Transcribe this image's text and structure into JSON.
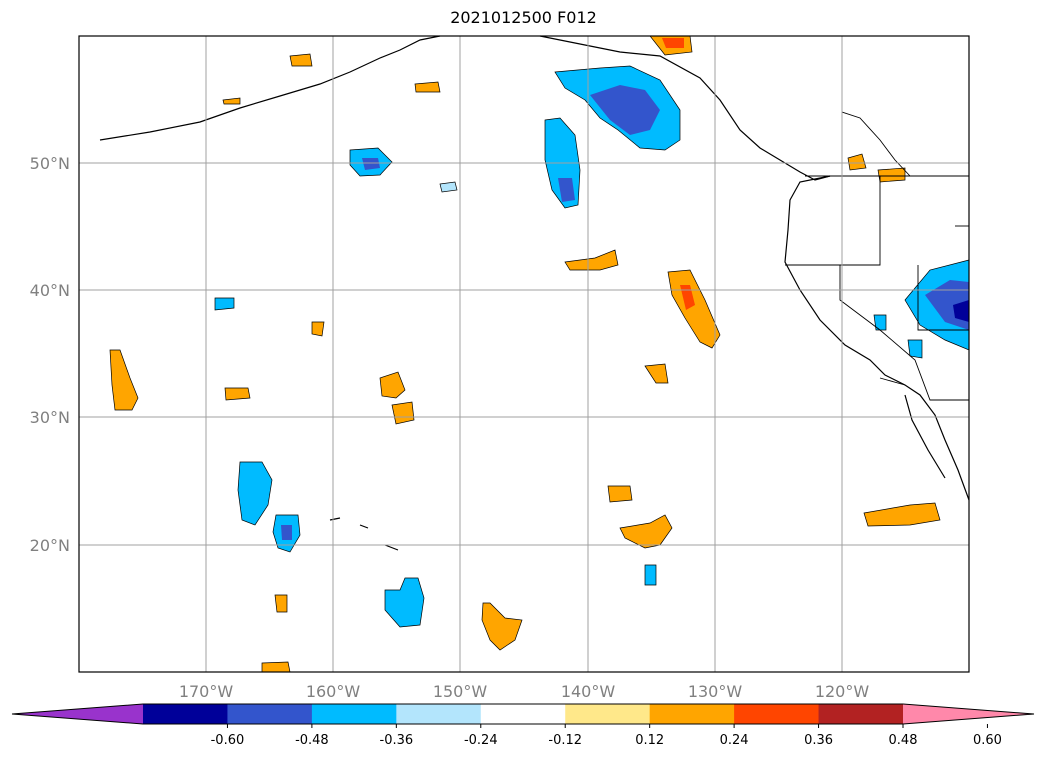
{
  "title": "2021012500 F012",
  "map": {
    "lat_labels": [
      "50°N",
      "40°N",
      "30°N",
      "20°N"
    ],
    "lon_labels": [
      "170°W",
      "160°W",
      "150°W",
      "140°W",
      "130°W",
      "120°W"
    ],
    "land_color": "#ffffff",
    "grid_color": "#a0a0a0"
  },
  "colorbar": {
    "labels": [
      "-0.60",
      "-0.48",
      "-0.36",
      "-0.24",
      "-0.12",
      "0.12",
      "0.24",
      "0.36",
      "0.48",
      "0.60"
    ],
    "colors": [
      "#9933cc",
      "#000099",
      "#3355cc",
      "#00bbff",
      "#b3e5fc",
      "#ffffff",
      "#ffe88a",
      "#ffa500",
      "#ff4500",
      "#b22222",
      "#ff88aa"
    ]
  }
}
